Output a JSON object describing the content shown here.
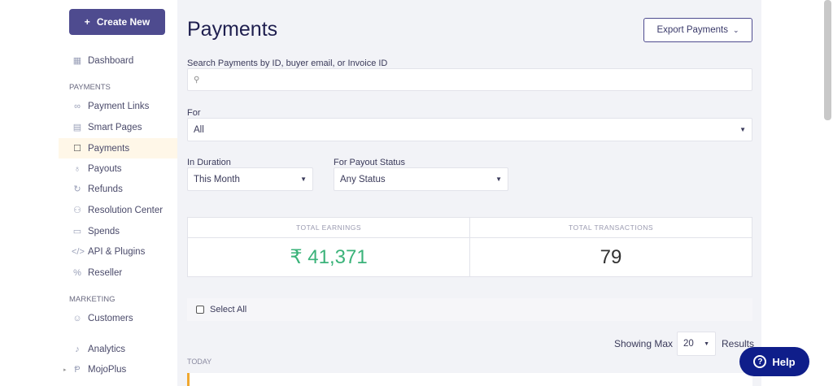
{
  "sidebar": {
    "create_label": "Create New",
    "dashboard": "Dashboard",
    "payments_section": "PAYMENTS",
    "items": [
      {
        "label": "Payment Links",
        "icon": "link-icon"
      },
      {
        "label": "Smart Pages",
        "icon": "page-icon"
      },
      {
        "label": "Payments",
        "icon": "chart-icon"
      },
      {
        "label": "Payouts",
        "icon": "payout-icon"
      },
      {
        "label": "Refunds",
        "icon": "refund-icon"
      },
      {
        "label": "Resolution Center",
        "icon": "resolution-icon"
      },
      {
        "label": "Spends",
        "icon": "receipt-icon"
      },
      {
        "label": "API & Plugins",
        "icon": "code-icon"
      },
      {
        "label": "Reseller",
        "icon": "percent-icon"
      }
    ],
    "marketing_section": "MARKETING",
    "customers": "Customers",
    "analytics": "Analytics",
    "mojoplus": "MojoPlus"
  },
  "main": {
    "title": "Payments",
    "export_label": "Export Payments",
    "search_label": "Search Payments by ID, buyer email, or Invoice ID",
    "search_value": "",
    "for_label": "For",
    "for_value": "All",
    "duration_label": "In Duration",
    "duration_value": "This Month",
    "payout_label": "For Payout Status",
    "payout_value": "Any Status",
    "earnings_label": "TOTAL EARNINGS",
    "earnings_value": "₹ 41,371",
    "transactions_label": "TOTAL TRANSACTIONS",
    "transactions_value": "79",
    "select_all": "Select All",
    "showing_max": "Showing Max",
    "max_value": "20",
    "results": "Results",
    "today": "TODAY",
    "help": "Help"
  },
  "colors": {
    "accent": "#4e4b8f",
    "earnings": "#3bb37a",
    "help": "#0f1e8a",
    "active_bg": "#fff7e8"
  }
}
